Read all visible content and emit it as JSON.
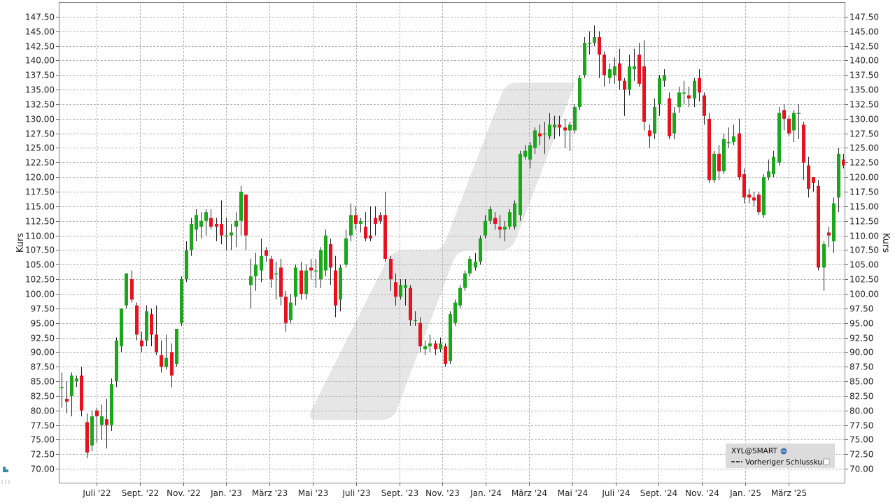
{
  "chart_data": {
    "type": "candlestick",
    "y_axis_label": "Kurs",
    "ylim": [
      67.5,
      150
    ],
    "y_ticks": [
      "70.00",
      "72.50",
      "75.00",
      "77.50",
      "80.00",
      "82.50",
      "85.00",
      "87.50",
      "90.00",
      "92.50",
      "95.00",
      "97.50",
      "100.00",
      "102.50",
      "105.00",
      "107.50",
      "110.00",
      "112.50",
      "115.00",
      "117.50",
      "120.00",
      "122.50",
      "125.00",
      "127.50",
      "130.00",
      "132.50",
      "135.00",
      "137.50",
      "140.00",
      "142.50",
      "145.00",
      "147.50"
    ],
    "x_ticks": [
      "Juli '22",
      "Sept. '22",
      "Nov. '22",
      "Jan. '23",
      "März '23",
      "Mai '23",
      "Juli '23",
      "Sept. '23",
      "Nov. '23",
      "Jan. '24",
      "März '24",
      "Mai '24",
      "Juli '24",
      "Sept. '24",
      "Nov. '24",
      "Jan. '25",
      "März '25"
    ],
    "grid": true,
    "colors": {
      "up": "#1aa81a",
      "down": "#e8121e",
      "grid": "#b4b4b4",
      "watermark": "#e6e6e6",
      "legend_bg": "#dcdcdc"
    },
    "legend": {
      "position": "bottom-right",
      "symbol": "XYL@SMART",
      "previous_close_label": "Vorheriger Schlusskurs"
    },
    "candles": [
      {
        "open": 84.0,
        "close": 84.0,
        "high": 86.5,
        "low": 80.5
      },
      {
        "open": 82.0,
        "close": 81.5,
        "high": 85.0,
        "low": 79.5
      },
      {
        "open": 82.5,
        "close": 86.0,
        "high": 86.5,
        "low": 79.0
      },
      {
        "open": 85.0,
        "close": 85.5,
        "high": 86.0,
        "low": 84.0
      },
      {
        "open": 86.0,
        "close": 80.0,
        "high": 87.5,
        "low": 79.0
      },
      {
        "open": 78.0,
        "close": 72.8,
        "high": 79.5,
        "low": 71.8
      },
      {
        "open": 74.0,
        "close": 79.0,
        "high": 80.0,
        "low": 73.0
      },
      {
        "open": 80.0,
        "close": 79.0,
        "high": 80.5,
        "low": 74.5
      },
      {
        "open": 77.5,
        "close": 79.0,
        "high": 81.0,
        "low": 75.0
      },
      {
        "open": 78.5,
        "close": 77.5,
        "high": 82.0,
        "low": 73.5
      },
      {
        "open": 77.5,
        "close": 84.5,
        "high": 85.5,
        "low": 76.5
      },
      {
        "open": 85.0,
        "close": 92.0,
        "high": 92.5,
        "low": 84.0
      },
      {
        "open": 91.0,
        "close": 97.5,
        "high": 97.5,
        "low": 90.0
      },
      {
        "open": 98.0,
        "close": 103.5,
        "high": 103.5,
        "low": 97.5
      },
      {
        "open": 102.5,
        "close": 99.0,
        "high": 104.0,
        "low": 98.5
      },
      {
        "open": 98.0,
        "close": 93.0,
        "high": 98.5,
        "low": 92.0
      },
      {
        "open": 92.0,
        "close": 91.0,
        "high": 93.5,
        "low": 90.0
      },
      {
        "open": 92.0,
        "close": 97.0,
        "high": 98.0,
        "low": 91.0
      },
      {
        "open": 96.5,
        "close": 93.0,
        "high": 97.5,
        "low": 91.0
      },
      {
        "open": 93.0,
        "close": 90.0,
        "high": 98.0,
        "low": 89.5
      },
      {
        "open": 89.5,
        "close": 87.5,
        "high": 92.0,
        "low": 86.5
      },
      {
        "open": 87.5,
        "close": 89.0,
        "high": 93.0,
        "low": 87.0
      },
      {
        "open": 90.0,
        "close": 86.0,
        "high": 91.5,
        "low": 84.0
      },
      {
        "open": 88.0,
        "close": 94.0,
        "high": 94.0,
        "low": 87.5
      },
      {
        "open": 95.0,
        "close": 102.5,
        "high": 103.0,
        "low": 94.5
      },
      {
        "open": 102.5,
        "close": 107.5,
        "high": 109.0,
        "low": 102.0
      },
      {
        "open": 107.5,
        "close": 112.0,
        "high": 113.0,
        "low": 106.5
      },
      {
        "open": 111.0,
        "close": 113.5,
        "high": 114.5,
        "low": 109.0
      },
      {
        "open": 111.5,
        "close": 112.5,
        "high": 114.0,
        "low": 109.5
      },
      {
        "open": 112.5,
        "close": 114.0,
        "high": 114.5,
        "low": 110.0
      },
      {
        "open": 113.0,
        "close": 111.5,
        "high": 114.5,
        "low": 111.0
      },
      {
        "open": 112.0,
        "close": 111.5,
        "high": 113.0,
        "low": 109.0
      },
      {
        "open": 112.0,
        "close": 110.0,
        "high": 116.0,
        "low": 108.5
      },
      {
        "open": 110.0,
        "close": 110.0,
        "high": 113.0,
        "low": 107.5
      },
      {
        "open": 110.0,
        "close": 110.5,
        "high": 112.0,
        "low": 107.5
      },
      {
        "open": 111.5,
        "close": 112.5,
        "high": 114.0,
        "low": 108.0
      },
      {
        "open": 112.5,
        "close": 117.5,
        "high": 118.5,
        "low": 110.0
      },
      {
        "open": 117.0,
        "close": 110.0,
        "high": 117.0,
        "low": 107.5
      },
      {
        "open": 101.5,
        "close": 103.0,
        "high": 106.0,
        "low": 97.5
      },
      {
        "open": 103.0,
        "close": 105.0,
        "high": 107.0,
        "low": 100.5
      },
      {
        "open": 104.0,
        "close": 106.5,
        "high": 109.5,
        "low": 102.0
      },
      {
        "open": 107.5,
        "close": 106.5,
        "high": 108.0,
        "low": 105.5
      },
      {
        "open": 106.0,
        "close": 102.5,
        "high": 106.5,
        "low": 101.0
      },
      {
        "open": 103.5,
        "close": 103.5,
        "high": 105.5,
        "low": 99.0
      },
      {
        "open": 104.5,
        "close": 99.5,
        "high": 106.0,
        "low": 98.0
      },
      {
        "open": 99.5,
        "close": 95.0,
        "high": 100.5,
        "low": 93.5
      },
      {
        "open": 95.5,
        "close": 98.5,
        "high": 100.0,
        "low": 95.0
      },
      {
        "open": 99.5,
        "close": 104.5,
        "high": 105.0,
        "low": 98.0
      },
      {
        "open": 104.0,
        "close": 100.0,
        "high": 105.5,
        "low": 99.0
      },
      {
        "open": 100.0,
        "close": 104.0,
        "high": 105.0,
        "low": 99.0
      },
      {
        "open": 104.5,
        "close": 104.0,
        "high": 106.0,
        "low": 102.5
      },
      {
        "open": 104.0,
        "close": 104.0,
        "high": 106.0,
        "low": 101.0
      },
      {
        "open": 102.5,
        "close": 107.5,
        "high": 108.0,
        "low": 101.0
      },
      {
        "open": 104.0,
        "close": 110.0,
        "high": 111.0,
        "low": 103.0
      },
      {
        "open": 108.5,
        "close": 104.5,
        "high": 109.5,
        "low": 101.5
      },
      {
        "open": 104.0,
        "close": 98.0,
        "high": 106.5,
        "low": 96.0
      },
      {
        "open": 99.0,
        "close": 104.5,
        "high": 105.0,
        "low": 97.0
      },
      {
        "open": 105.0,
        "close": 109.5,
        "high": 111.0,
        "low": 104.5
      },
      {
        "open": 110.0,
        "close": 113.5,
        "high": 115.5,
        "low": 109.0
      },
      {
        "open": 113.5,
        "close": 112.0,
        "high": 115.0,
        "low": 111.0
      },
      {
        "open": 112.0,
        "close": 112.5,
        "high": 113.0,
        "low": 110.5
      },
      {
        "open": 111.5,
        "close": 109.5,
        "high": 114.0,
        "low": 109.0
      },
      {
        "open": 110.0,
        "close": 109.5,
        "high": 115.0,
        "low": 109.0
      },
      {
        "open": 113.0,
        "close": 112.0,
        "high": 115.0,
        "low": 110.0
      },
      {
        "open": 113.5,
        "close": 112.5,
        "high": 114.0,
        "low": 112.0
      },
      {
        "open": 113.5,
        "close": 106.0,
        "high": 117.5,
        "low": 105.5
      },
      {
        "open": 106.0,
        "close": 102.5,
        "high": 106.5,
        "low": 100.5
      },
      {
        "open": 102.0,
        "close": 99.5,
        "high": 103.5,
        "low": 98.0
      },
      {
        "open": 99.5,
        "close": 101.5,
        "high": 102.5,
        "low": 99.0
      },
      {
        "open": 101.0,
        "close": 101.5,
        "high": 102.5,
        "low": 98.0
      },
      {
        "open": 101.0,
        "close": 95.5,
        "high": 101.5,
        "low": 94.5
      },
      {
        "open": 95.5,
        "close": 95.5,
        "high": 97.0,
        "low": 94.5
      },
      {
        "open": 95.0,
        "close": 91.0,
        "high": 96.0,
        "low": 90.0
      },
      {
        "open": 90.5,
        "close": 91.0,
        "high": 92.0,
        "low": 89.5
      },
      {
        "open": 91.0,
        "close": 91.5,
        "high": 93.0,
        "low": 90.0
      },
      {
        "open": 91.5,
        "close": 90.5,
        "high": 92.0,
        "low": 89.5
      },
      {
        "open": 90.5,
        "close": 91.5,
        "high": 92.5,
        "low": 90.0
      },
      {
        "open": 91.0,
        "close": 88.0,
        "high": 91.5,
        "low": 87.5
      },
      {
        "open": 88.5,
        "close": 96.5,
        "high": 97.0,
        "low": 88.0
      },
      {
        "open": 95.0,
        "close": 98.5,
        "high": 99.0,
        "low": 94.5
      },
      {
        "open": 98.0,
        "close": 101.0,
        "high": 101.5,
        "low": 97.5
      },
      {
        "open": 101.0,
        "close": 103.5,
        "high": 104.0,
        "low": 100.5
      },
      {
        "open": 103.5,
        "close": 106.0,
        "high": 106.5,
        "low": 103.0
      },
      {
        "open": 104.5,
        "close": 105.5,
        "high": 107.0,
        "low": 104.0
      },
      {
        "open": 105.5,
        "close": 109.5,
        "high": 110.0,
        "low": 105.0
      },
      {
        "open": 110.0,
        "close": 112.5,
        "high": 113.5,
        "low": 109.5
      },
      {
        "open": 112.5,
        "close": 114.5,
        "high": 115.0,
        "low": 112.0
      },
      {
        "open": 113.0,
        "close": 112.0,
        "high": 114.0,
        "low": 111.0
      },
      {
        "open": 111.5,
        "close": 111.0,
        "high": 113.5,
        "low": 109.5
      },
      {
        "open": 111.0,
        "close": 111.5,
        "high": 112.5,
        "low": 109.0
      },
      {
        "open": 111.5,
        "close": 114.0,
        "high": 114.5,
        "low": 111.0
      },
      {
        "open": 111.5,
        "close": 115.5,
        "high": 116.0,
        "low": 111.0
      },
      {
        "open": 113.5,
        "close": 124.0,
        "high": 124.5,
        "low": 112.5
      },
      {
        "open": 123.5,
        "close": 124.5,
        "high": 125.5,
        "low": 123.0
      },
      {
        "open": 123.0,
        "close": 125.5,
        "high": 126.0,
        "low": 121.5
      },
      {
        "open": 125.0,
        "close": 128.0,
        "high": 128.5,
        "low": 124.0
      },
      {
        "open": 127.5,
        "close": 127.0,
        "high": 129.0,
        "low": 125.5
      },
      {
        "open": 127.5,
        "close": 127.5,
        "high": 129.5,
        "low": 124.0
      },
      {
        "open": 127.0,
        "close": 129.0,
        "high": 131.0,
        "low": 126.5
      },
      {
        "open": 128.5,
        "close": 129.0,
        "high": 130.5,
        "low": 126.5
      },
      {
        "open": 129.0,
        "close": 128.5,
        "high": 130.5,
        "low": 127.0
      },
      {
        "open": 128.5,
        "close": 128.0,
        "high": 130.0,
        "low": 125.0
      },
      {
        "open": 128.0,
        "close": 129.0,
        "high": 129.5,
        "low": 124.5
      },
      {
        "open": 128.0,
        "close": 132.0,
        "high": 132.5,
        "low": 127.5
      },
      {
        "open": 132.0,
        "close": 137.0,
        "high": 137.5,
        "low": 131.5
      },
      {
        "open": 137.5,
        "close": 143.0,
        "high": 144.0,
        "low": 137.0
      },
      {
        "open": 143.0,
        "close": 143.0,
        "high": 145.0,
        "low": 141.0
      },
      {
        "open": 143.0,
        "close": 144.0,
        "high": 146.0,
        "low": 142.5
      },
      {
        "open": 144.0,
        "close": 141.0,
        "high": 145.0,
        "low": 137.0
      },
      {
        "open": 141.0,
        "close": 137.5,
        "high": 141.5,
        "low": 135.5
      },
      {
        "open": 137.0,
        "close": 138.5,
        "high": 139.5,
        "low": 136.0
      },
      {
        "open": 137.5,
        "close": 139.0,
        "high": 140.5,
        "low": 136.0
      },
      {
        "open": 139.5,
        "close": 136.5,
        "high": 142.0,
        "low": 135.0
      },
      {
        "open": 136.5,
        "close": 135.0,
        "high": 137.0,
        "low": 130.5
      },
      {
        "open": 135.0,
        "close": 139.0,
        "high": 141.0,
        "low": 134.0
      },
      {
        "open": 138.5,
        "close": 139.0,
        "high": 142.0,
        "low": 136.5
      },
      {
        "open": 141.0,
        "close": 136.0,
        "high": 143.0,
        "low": 135.5
      },
      {
        "open": 139.0,
        "close": 129.5,
        "high": 143.5,
        "low": 128.0
      },
      {
        "open": 128.0,
        "close": 127.0,
        "high": 129.0,
        "low": 125.0
      },
      {
        "open": 127.5,
        "close": 132.0,
        "high": 133.5,
        "low": 126.5
      },
      {
        "open": 132.5,
        "close": 137.0,
        "high": 137.5,
        "low": 130.5
      },
      {
        "open": 136.5,
        "close": 137.5,
        "high": 138.5,
        "low": 135.5
      },
      {
        "open": 133.5,
        "close": 127.0,
        "high": 134.5,
        "low": 126.5
      },
      {
        "open": 127.5,
        "close": 131.0,
        "high": 132.0,
        "low": 126.5
      },
      {
        "open": 132.0,
        "close": 134.5,
        "high": 135.5,
        "low": 131.0
      },
      {
        "open": 134.5,
        "close": 134.5,
        "high": 136.5,
        "low": 132.5
      },
      {
        "open": 134.0,
        "close": 133.5,
        "high": 135.5,
        "low": 132.0
      },
      {
        "open": 133.5,
        "close": 136.5,
        "high": 137.0,
        "low": 132.0
      },
      {
        "open": 137.0,
        "close": 134.5,
        "high": 138.5,
        "low": 133.0
      },
      {
        "open": 134.0,
        "close": 130.5,
        "high": 134.5,
        "low": 129.0
      },
      {
        "open": 130.0,
        "close": 119.5,
        "high": 131.0,
        "low": 119.0
      },
      {
        "open": 119.5,
        "close": 124.0,
        "high": 124.5,
        "low": 119.0
      },
      {
        "open": 124.0,
        "close": 121.0,
        "high": 125.5,
        "low": 119.5
      },
      {
        "open": 121.0,
        "close": 126.5,
        "high": 127.5,
        "low": 120.5
      },
      {
        "open": 126.0,
        "close": 126.0,
        "high": 128.5,
        "low": 125.0
      },
      {
        "open": 126.0,
        "close": 127.0,
        "high": 129.0,
        "low": 125.5
      },
      {
        "open": 127.5,
        "close": 120.0,
        "high": 130.0,
        "low": 119.5
      },
      {
        "open": 120.5,
        "close": 116.5,
        "high": 121.5,
        "low": 115.5
      },
      {
        "open": 117.0,
        "close": 116.5,
        "high": 118.0,
        "low": 115.5
      },
      {
        "open": 116.5,
        "close": 116.0,
        "high": 117.5,
        "low": 115.0
      },
      {
        "open": 117.0,
        "close": 114.0,
        "high": 117.5,
        "low": 113.5
      },
      {
        "open": 113.5,
        "close": 120.0,
        "high": 120.5,
        "low": 113.0
      },
      {
        "open": 120.0,
        "close": 121.0,
        "high": 123.0,
        "low": 119.5
      },
      {
        "open": 120.5,
        "close": 123.5,
        "high": 124.5,
        "low": 120.0
      },
      {
        "open": 122.5,
        "close": 131.0,
        "high": 132.0,
        "low": 122.0
      },
      {
        "open": 131.5,
        "close": 130.0,
        "high": 132.5,
        "low": 128.0
      },
      {
        "open": 130.0,
        "close": 127.5,
        "high": 130.5,
        "low": 127.0
      },
      {
        "open": 128.0,
        "close": 131.0,
        "high": 131.5,
        "low": 126.0
      },
      {
        "open": 131.0,
        "close": 131.0,
        "high": 132.5,
        "low": 126.5
      },
      {
        "open": 129.0,
        "close": 122.5,
        "high": 129.5,
        "low": 119.5
      },
      {
        "open": 122.0,
        "close": 118.0,
        "high": 123.5,
        "low": 116.5
      },
      {
        "open": 120.0,
        "close": 119.0,
        "high": 120.0,
        "low": 117.5
      },
      {
        "open": 118.5,
        "close": 104.5,
        "high": 119.5,
        "low": 104.0
      },
      {
        "open": 104.5,
        "close": 108.5,
        "high": 109.0,
        "low": 100.5
      },
      {
        "open": 110.5,
        "close": 110.0,
        "high": 111.5,
        "low": 108.0
      },
      {
        "open": 109.0,
        "close": 115.5,
        "high": 116.5,
        "low": 107.0
      },
      {
        "open": 116.5,
        "close": 124.0,
        "high": 125.0,
        "low": 114.0
      },
      {
        "open": 123.0,
        "close": 122.0,
        "high": 124.0,
        "low": 121.5
      }
    ]
  }
}
